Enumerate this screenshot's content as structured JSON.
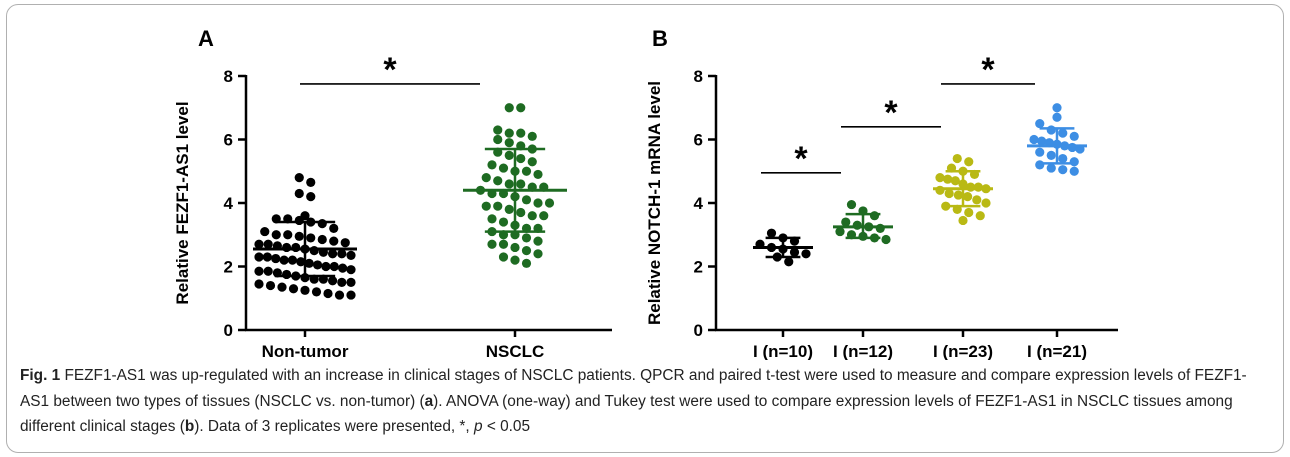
{
  "figure": {
    "caption": {
      "label": "Fig. 1",
      "parts": [
        " FEZF1-AS1 was up-regulated with an increase in clinical stages of NSCLC patients. QPCR and paired t-test were used to measure and compare expression levels of FEZF1-AS1 between two types of tissues (NSCLC vs. non-tumor) (",
        "a",
        "). ANOVA (one-way) and Tukey test were used to compare expression levels of FEZF1-AS1 in NSCLC tissues among different clinical stages (",
        "b",
        "). Data of 3 replicates were presented, *, ",
        "p",
        " < 0.05"
      ]
    }
  },
  "chart_data": [
    {
      "type": "scatter",
      "panel_label": "A",
      "ylabel": "Relative FEZF1-AS1 level",
      "ylim": [
        0,
        8
      ],
      "yticks": [
        "0",
        "2",
        "4",
        "6",
        "8"
      ],
      "categories": [
        "Non-tumor",
        "NSCLC"
      ],
      "colors": [
        "#000000",
        "#1e6b22"
      ],
      "summary": [
        {
          "mean": 2.55,
          "sd_low": 1.7,
          "sd_high": 3.4
        },
        {
          "mean": 4.4,
          "sd_low": 3.1,
          "sd_high": 5.7
        }
      ],
      "significance": [
        {
          "from": 0,
          "to": 1,
          "y": 7.75,
          "label": "*"
        }
      ],
      "series": [
        {
          "values": [
            4.8,
            4.65,
            4.3,
            4.2,
            3.6,
            3.5,
            3.5,
            3.45,
            3.4,
            3.35,
            3.2,
            3.1,
            3.0,
            3.0,
            2.95,
            2.9,
            2.85,
            2.8,
            2.75,
            2.7,
            2.7,
            2.65,
            2.6,
            2.6,
            2.55,
            2.5,
            2.45,
            2.4,
            2.4,
            2.35,
            2.3,
            2.3,
            2.25,
            2.2,
            2.2,
            2.15,
            2.1,
            2.05,
            2.0,
            2.0,
            1.95,
            1.9,
            1.85,
            1.85,
            1.8,
            1.75,
            1.7,
            1.65,
            1.6,
            1.6,
            1.55,
            1.5,
            1.5,
            1.45,
            1.4,
            1.35,
            1.3,
            1.25,
            1.2,
            1.15,
            1.1,
            1.1
          ]
        },
        {
          "values": [
            7.0,
            7.0,
            6.3,
            6.2,
            6.2,
            6.1,
            6.0,
            5.9,
            5.8,
            5.7,
            5.6,
            5.5,
            5.4,
            5.3,
            5.2,
            5.1,
            5.0,
            5.0,
            4.9,
            4.8,
            4.7,
            4.6,
            4.6,
            4.5,
            4.5,
            4.4,
            4.3,
            4.3,
            4.2,
            4.1,
            4.0,
            4.0,
            3.9,
            3.9,
            3.8,
            3.7,
            3.6,
            3.6,
            3.5,
            3.4,
            3.3,
            3.2,
            3.2,
            3.1,
            3.0,
            3.0,
            2.9,
            2.8,
            2.7,
            2.7,
            2.6,
            2.5,
            2.4,
            2.3,
            2.2,
            2.1
          ]
        }
      ]
    },
    {
      "type": "scatter",
      "panel_label": "B",
      "ylabel": "Relative NOTCH-1 mRNA level",
      "ylim": [
        0,
        8
      ],
      "yticks": [
        "0",
        "2",
        "4",
        "6",
        "8"
      ],
      "categories": [
        "I (n=10)",
        "I (n=12)",
        "I (n=23)",
        "I (n=21)"
      ],
      "colors": [
        "#000000",
        "#1e6b22",
        "#b9b914",
        "#3d8ee4"
      ],
      "summary": [
        {
          "mean": 2.6,
          "sd_low": 2.3,
          "sd_high": 2.9
        },
        {
          "mean": 3.25,
          "sd_low": 2.9,
          "sd_high": 3.65
        },
        {
          "mean": 4.45,
          "sd_low": 3.9,
          "sd_high": 5.0
        },
        {
          "mean": 5.8,
          "sd_low": 5.25,
          "sd_high": 6.35
        }
      ],
      "significance": [
        {
          "from": 0,
          "to": 1,
          "y": 4.95,
          "label": "*"
        },
        {
          "from": 1,
          "to": 2,
          "y": 6.4,
          "label": "*"
        },
        {
          "from": 2,
          "to": 3,
          "y": 7.75,
          "label": "*"
        }
      ],
      "series": [
        {
          "values": [
            3.05,
            2.9,
            2.8,
            2.7,
            2.6,
            2.55,
            2.45,
            2.4,
            2.3,
            2.15
          ]
        },
        {
          "values": [
            3.95,
            3.75,
            3.6,
            3.4,
            3.3,
            3.25,
            3.2,
            3.1,
            3.0,
            2.95,
            2.9,
            2.85
          ]
        },
        {
          "values": [
            5.4,
            5.3,
            5.1,
            5.0,
            4.9,
            4.8,
            4.75,
            4.7,
            4.6,
            4.5,
            4.5,
            4.45,
            4.4,
            4.3,
            4.25,
            4.2,
            4.1,
            4.0,
            3.9,
            3.8,
            3.7,
            3.6,
            3.45
          ]
        },
        {
          "values": [
            7.0,
            6.7,
            6.5,
            6.3,
            6.2,
            6.1,
            6.0,
            5.95,
            5.9,
            5.85,
            5.8,
            5.75,
            5.7,
            5.6,
            5.5,
            5.4,
            5.3,
            5.2,
            5.1,
            5.05,
            5.0
          ]
        }
      ]
    }
  ]
}
